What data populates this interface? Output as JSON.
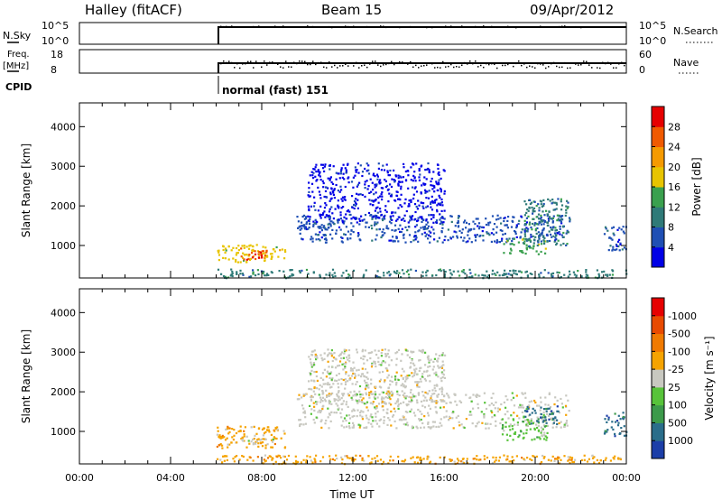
{
  "header": {
    "station": "Halley (fitACF)",
    "beam": "Beam 15",
    "date": "09/Apr/2012"
  },
  "status_panels": {
    "noise_sky": {
      "label": "N.Sky",
      "ticks": [
        "10^5",
        "10^0"
      ]
    },
    "noise_search": {
      "label": "N.Search",
      "ticks": [
        "10^5",
        "10^0"
      ]
    },
    "frequency": {
      "label_line1": "Freq.",
      "label_line2": "[MHz]",
      "ticks": [
        "18",
        "8"
      ]
    },
    "nave": {
      "label": "Nave",
      "ticks": [
        "60",
        "0"
      ]
    },
    "cpid": {
      "label": "CPID",
      "value": "normal (fast) 151"
    }
  },
  "chart_data": [
    {
      "type": "heatmap",
      "name": "power",
      "ylabel": "Slant Range [km]",
      "xlabel": "",
      "xlim": [
        0,
        24
      ],
      "ylim": [
        180,
        4600
      ],
      "y_ticks": [
        "1000",
        "2000",
        "3000",
        "4000"
      ],
      "colorbar": {
        "label": "Power [dB]",
        "ticks": [
          "4",
          "8",
          "12",
          "16",
          "20",
          "24",
          "28"
        ],
        "colors": [
          "#0000e6",
          "#1f4fb4",
          "#2f7a78",
          "#3aa04e",
          "#e8c400",
          "#f59a00",
          "#f05a00",
          "#e60000"
        ]
      },
      "data_start_ut": 6.0,
      "regions": [
        {
          "x": [
            6.0,
            9.0
          ],
          "y": [
            600,
            1050
          ],
          "level": 4
        },
        {
          "x": [
            7.0,
            8.2
          ],
          "y": [
            650,
            950
          ],
          "level": 6
        },
        {
          "x": [
            7.5,
            8.0
          ],
          "y": [
            700,
            850
          ],
          "level": 7
        },
        {
          "x": [
            9.5,
            21.5
          ],
          "y": [
            1100,
            1800
          ],
          "level": 1
        },
        {
          "x": [
            10.0,
            16.0
          ],
          "y": [
            1600,
            3100
          ],
          "level": 0
        },
        {
          "x": [
            18.5,
            20.5
          ],
          "y": [
            800,
            1200
          ],
          "level": 3
        },
        {
          "x": [
            19.5,
            21.5
          ],
          "y": [
            1000,
            2200
          ],
          "level": 2
        },
        {
          "x": [
            23.0,
            24.0
          ],
          "y": [
            900,
            1500
          ],
          "level": 1
        },
        {
          "x": [
            6.0,
            24.0
          ],
          "y": [
            200,
            420
          ],
          "level": 2
        }
      ]
    },
    {
      "type": "heatmap",
      "name": "velocity",
      "ylabel": "Slant Range [km]",
      "xlabel": "Time UT",
      "xlim": [
        0,
        24
      ],
      "ylim": [
        180,
        4600
      ],
      "x_ticks": [
        "00:00",
        "04:00",
        "08:00",
        "12:00",
        "16:00",
        "20:00",
        "00:00"
      ],
      "y_ticks": [
        "1000",
        "2000",
        "3000",
        "4000"
      ],
      "colorbar": {
        "label": "Velocity [m s⁻¹]",
        "ticks": [
          "1000",
          "500",
          "100",
          "25",
          "-25",
          "-100",
          "-500",
          "-1000"
        ],
        "colors": [
          "#1c3ea8",
          "#2a6d8a",
          "#3c9a4a",
          "#57c33a",
          "#c8c8c0",
          "#f5a300",
          "#f07a00",
          "#e84a00",
          "#e60000"
        ]
      },
      "regions": [
        {
          "x": [
            6.0,
            9.0
          ],
          "y": [
            600,
            1150
          ],
          "level": 5
        },
        {
          "x": [
            7.0,
            8.5
          ],
          "y": [
            700,
            950
          ],
          "level": 4
        },
        {
          "x": [
            9.5,
            21.5
          ],
          "y": [
            1100,
            2000
          ],
          "level": 4
        },
        {
          "x": [
            10.0,
            16.0
          ],
          "y": [
            1700,
            3100
          ],
          "level": 4
        },
        {
          "x": [
            18.5,
            20.5
          ],
          "y": [
            800,
            1400
          ],
          "level": 3
        },
        {
          "x": [
            19.5,
            21.0
          ],
          "y": [
            1200,
            1700
          ],
          "level": 1
        },
        {
          "x": [
            23.0,
            24.0
          ],
          "y": [
            900,
            1500
          ],
          "level": 1
        },
        {
          "x": [
            6.0,
            24.0
          ],
          "y": [
            200,
            420
          ],
          "level": 5
        }
      ]
    }
  ],
  "colors": {
    "axis": "#000000",
    "background": "#ffffff"
  }
}
